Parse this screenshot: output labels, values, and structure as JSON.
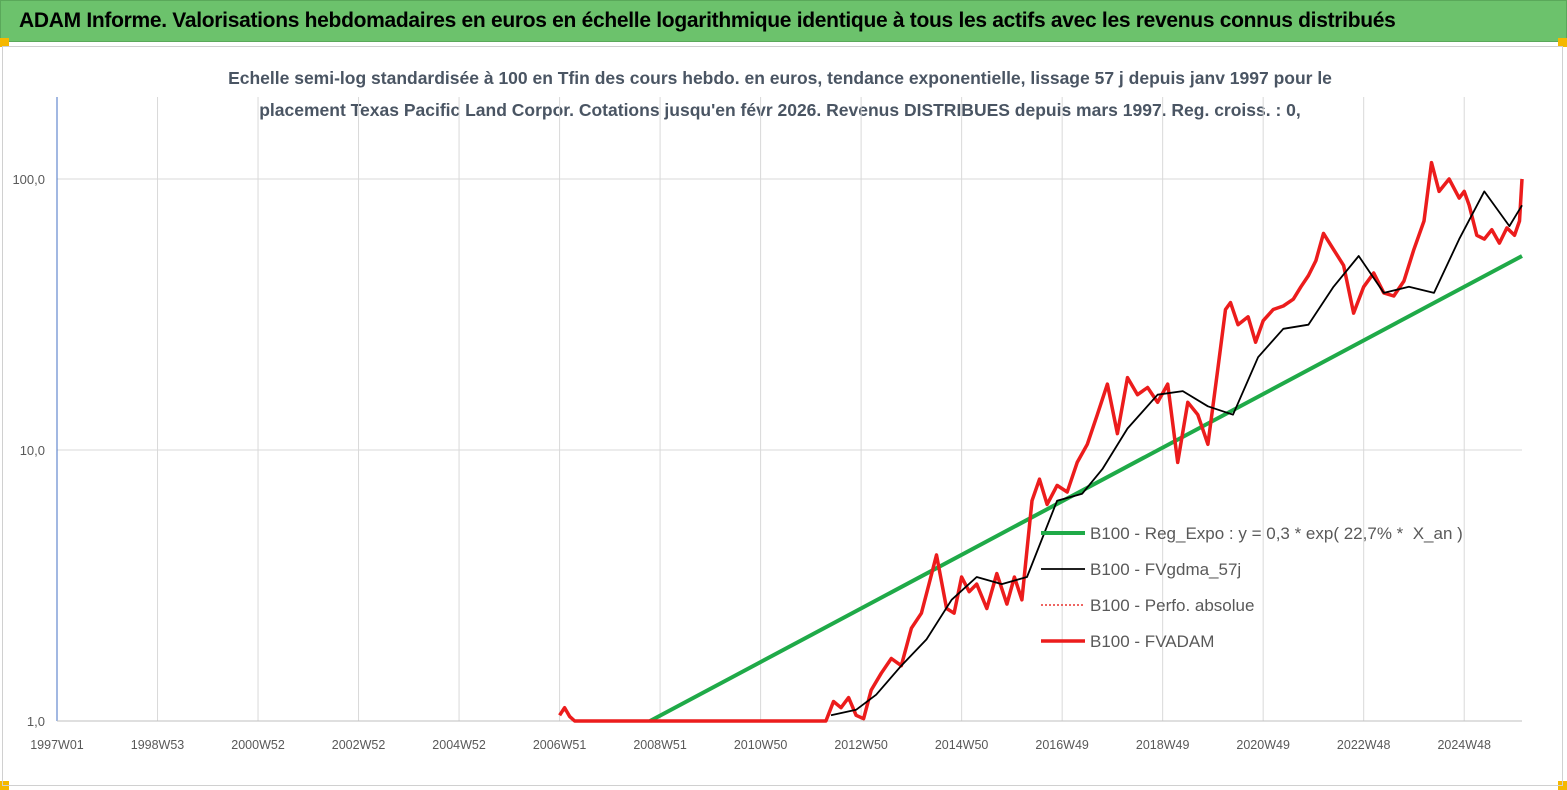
{
  "header": {
    "title": "ADAM Informe. Valorisations hebdomadaires en euros en échelle logarithmique identique à tous les actifs avec les revenus connus distribués"
  },
  "chart_data": {
    "type": "line",
    "title_line1": "Echelle semi-log standardisée à 100 en Tfin des cours hebdo. en euros, tendance exponentielle, lissage 57 j depuis janv 1997 pour le",
    "title_line2": "placement Texas Pacific Land Corpor. Cotations jusqu'en févr 2026. Revenus DISTRIBUES depuis mars 1997. Reg. croiss. : 0,",
    "y_scale": "log",
    "ylim": [
      1,
      200
    ],
    "xlim": [
      1997.0,
      2026.15
    ],
    "y_ticks": [
      {
        "value": 1,
        "label": "1,0"
      },
      {
        "value": 10,
        "label": "10,0"
      },
      {
        "value": 100,
        "label": "100,0"
      }
    ],
    "x_ticks": [
      {
        "value": 1997.0,
        "label": "1997W01"
      },
      {
        "value": 1999.0,
        "label": "1998W53"
      },
      {
        "value": 2001.0,
        "label": "2000W52"
      },
      {
        "value": 2003.0,
        "label": "2002W52"
      },
      {
        "value": 2005.0,
        "label": "2004W52"
      },
      {
        "value": 2007.0,
        "label": "2006W51"
      },
      {
        "value": 2009.0,
        "label": "2008W51"
      },
      {
        "value": 2011.0,
        "label": "2010W50"
      },
      {
        "value": 2013.0,
        "label": "2012W50"
      },
      {
        "value": 2015.0,
        "label": "2014W50"
      },
      {
        "value": 2017.0,
        "label": "2016W49"
      },
      {
        "value": 2019.0,
        "label": "2018W49"
      },
      {
        "value": 2021.0,
        "label": "2020W49"
      },
      {
        "value": 2023.0,
        "label": "2022W48"
      },
      {
        "value": 2025.0,
        "label": "2024W48"
      }
    ],
    "grid": "vertical",
    "legend_position": "right-middle",
    "series": [
      {
        "name": "B100 - Reg_Expo : y = 0,3 * exp( 22,7% *  X_an )",
        "color": "#1faa48",
        "style": "solid-thick",
        "x": [
          2008.8,
          2026.15
        ],
        "y": [
          1.0,
          52
        ]
      },
      {
        "name": "B100 - FVgdma_57j",
        "color": "#000000",
        "style": "solid",
        "x": [
          2012.4,
          2012.9,
          2013.3,
          2013.8,
          2014.3,
          2014.8,
          2015.3,
          2015.8,
          2016.3,
          2016.9,
          2017.4,
          2017.8,
          2018.3,
          2018.9,
          2019.4,
          2019.9,
          2020.4,
          2020.9,
          2021.4,
          2021.9,
          2022.4,
          2022.9,
          2023.4,
          2023.9,
          2024.4,
          2024.9,
          2025.4,
          2025.9,
          2026.15
        ],
        "y": [
          1.05,
          1.1,
          1.25,
          1.6,
          2.0,
          2.8,
          3.4,
          3.2,
          3.4,
          6.5,
          6.9,
          8.5,
          12,
          16,
          16.5,
          14.5,
          13.5,
          22,
          28,
          29,
          40,
          52,
          38,
          40,
          38,
          60,
          90,
          67,
          80
        ]
      },
      {
        "name": "B100 - Perfo. absolue",
        "color": "#e8322e",
        "style": "dotted",
        "x": [],
        "y": []
      },
      {
        "name": "B100 - FVADAM",
        "color": "#ec1c1c",
        "style": "solid-thick",
        "x": [
          2007.0,
          2007.1,
          2007.2,
          2007.3,
          2012.3,
          2012.45,
          2012.6,
          2012.75,
          2012.9,
          2013.05,
          2013.2,
          2013.4,
          2013.6,
          2013.8,
          2014.0,
          2014.2,
          2014.35,
          2014.5,
          2014.7,
          2014.85,
          2015.0,
          2015.15,
          2015.3,
          2015.5,
          2015.7,
          2015.9,
          2016.05,
          2016.2,
          2016.4,
          2016.55,
          2016.7,
          2016.9,
          2017.1,
          2017.3,
          2017.5,
          2017.7,
          2017.9,
          2018.1,
          2018.3,
          2018.5,
          2018.7,
          2018.9,
          2019.1,
          2019.3,
          2019.5,
          2019.7,
          2019.9,
          2020.1,
          2020.25,
          2020.35,
          2020.5,
          2020.7,
          2020.85,
          2021.0,
          2021.2,
          2021.4,
          2021.6,
          2021.75,
          2021.9,
          2022.05,
          2022.2,
          2022.4,
          2022.6,
          2022.8,
          2023.0,
          2023.2,
          2023.4,
          2023.6,
          2023.8,
          2024.0,
          2024.2,
          2024.35,
          2024.5,
          2024.7,
          2024.9,
          2025.0,
          2025.1,
          2025.25,
          2025.4,
          2025.55,
          2025.7,
          2025.85,
          2026.0,
          2026.1,
          2026.15
        ],
        "y": [
          1.05,
          1.12,
          1.04,
          1.0,
          1.0,
          1.18,
          1.12,
          1.22,
          1.05,
          1.02,
          1.3,
          1.5,
          1.7,
          1.6,
          2.2,
          2.5,
          3.2,
          4.1,
          2.6,
          2.5,
          3.4,
          3.0,
          3.2,
          2.6,
          3.5,
          2.7,
          3.4,
          2.8,
          6.5,
          7.8,
          6.3,
          7.4,
          7.0,
          9.0,
          10.5,
          13.5,
          17.5,
          11.5,
          18.5,
          16.0,
          17.0,
          15.0,
          17.5,
          9.0,
          15.0,
          13.5,
          10.5,
          20.0,
          33.0,
          35.0,
          29.0,
          31.0,
          25.0,
          30.0,
          33.0,
          34.0,
          36.0,
          40.0,
          44.0,
          50.0,
          63.0,
          55.0,
          48.0,
          32.0,
          40.0,
          45.0,
          38.0,
          37.0,
          42.0,
          55.0,
          70.0,
          115.0,
          90.0,
          100.0,
          85.0,
          90.0,
          80.0,
          62.0,
          60.0,
          65.0,
          58.0,
          66.0,
          62.0,
          70.0,
          100.0
        ]
      }
    ]
  }
}
